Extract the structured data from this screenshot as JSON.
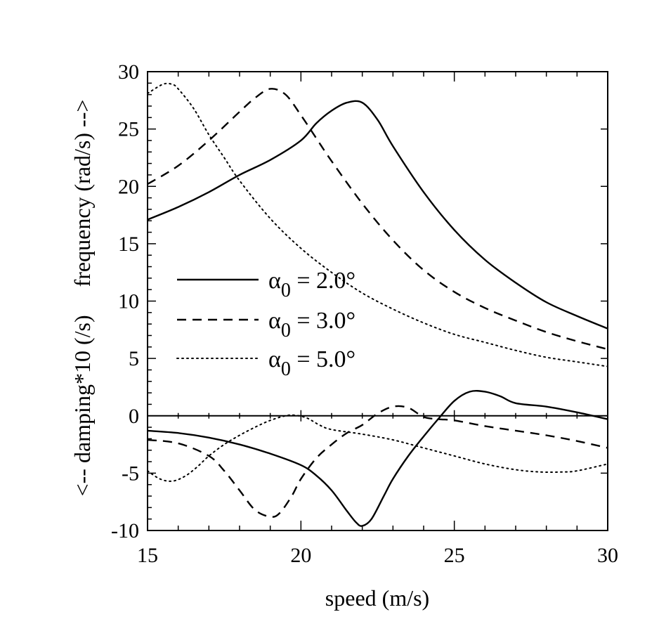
{
  "chart_data": {
    "type": "line",
    "xlabel": "speed (m/s)",
    "ylabel": "<-- damping*10 (/s)     frequency (rad/s) -->",
    "xlim": [
      15,
      30
    ],
    "ylim": [
      -10,
      30
    ],
    "xticks": [
      15,
      20,
      25,
      30
    ],
    "yticks": [
      -10,
      -5,
      0,
      5,
      10,
      15,
      20,
      25,
      30
    ],
    "grid": false,
    "legend_position": "center-left",
    "series": [
      {
        "name": "α0 = 2.0°",
        "legend": {
          "alpha": "α",
          "sub": "0",
          "rest": " = 2.0°"
        },
        "style": "solid",
        "frequency": {
          "x": [
            15,
            16,
            17,
            18,
            19,
            20,
            20.5,
            21,
            21.5,
            22,
            22.5,
            23,
            24,
            25,
            26,
            27,
            28,
            29,
            30
          ],
          "y": [
            17.1,
            18.2,
            19.5,
            21.0,
            22.3,
            24.0,
            25.5,
            26.6,
            27.3,
            27.3,
            25.8,
            23.5,
            19.5,
            16.2,
            13.6,
            11.6,
            9.9,
            8.7,
            7.6
          ]
        },
        "damping": {
          "x": [
            15,
            16,
            17,
            18,
            19,
            20,
            20.5,
            21,
            21.5,
            21.8,
            22,
            22.3,
            22.7,
            23,
            23.5,
            24,
            24.5,
            25,
            25.5,
            26,
            26.5,
            27,
            28,
            29,
            30
          ],
          "y": [
            -1.3,
            -1.5,
            -1.9,
            -2.5,
            -3.3,
            -4.3,
            -5.2,
            -6.5,
            -8.3,
            -9.3,
            -9.6,
            -9.0,
            -7.0,
            -5.5,
            -3.5,
            -1.8,
            -0.2,
            1.3,
            2.1,
            2.1,
            1.7,
            1.1,
            0.8,
            0.3,
            -0.3
          ]
        }
      },
      {
        "name": "α0 = 3.0°",
        "legend": {
          "alpha": "α",
          "sub": "0",
          "rest": " = 3.0°"
        },
        "style": "dashed",
        "frequency": {
          "x": [
            15,
            16,
            17,
            18,
            18.5,
            19,
            19.5,
            20,
            20.5,
            21,
            22,
            23,
            24,
            25,
            26,
            27,
            28,
            29,
            30
          ],
          "y": [
            20.2,
            21.8,
            24.0,
            26.5,
            27.7,
            28.5,
            28.0,
            26.2,
            24.2,
            22.2,
            18.5,
            15.3,
            12.7,
            10.8,
            9.4,
            8.3,
            7.3,
            6.5,
            5.8
          ]
        },
        "damping": {
          "x": [
            15,
            16,
            17,
            17.5,
            18,
            18.5,
            19,
            19.3,
            19.7,
            20,
            20.5,
            21,
            21.5,
            22,
            22.5,
            23,
            23.5,
            24,
            24.5,
            25,
            26,
            27,
            28,
            29,
            30
          ],
          "y": [
            -2.1,
            -2.4,
            -3.5,
            -4.8,
            -6.5,
            -8.2,
            -8.8,
            -8.5,
            -7.0,
            -5.5,
            -3.7,
            -2.5,
            -1.5,
            -0.8,
            0.2,
            0.8,
            0.7,
            -0.1,
            -0.3,
            -0.4,
            -0.9,
            -1.3,
            -1.7,
            -2.2,
            -2.8
          ]
        }
      },
      {
        "name": "α0 = 5.0°",
        "legend": {
          "alpha": "α",
          "sub": "0",
          "rest": " = 5.0°"
        },
        "style": "dotted",
        "frequency": {
          "x": [
            15,
            15.5,
            15.8,
            16,
            16.5,
            17,
            17.5,
            18,
            19,
            20,
            21,
            22,
            23,
            24,
            25,
            26,
            27,
            28,
            29,
            30
          ],
          "y": [
            28.1,
            28.9,
            28.9,
            28.5,
            26.8,
            24.5,
            22.5,
            20.5,
            17.2,
            14.6,
            12.5,
            10.7,
            9.3,
            8.1,
            7.1,
            6.4,
            5.7,
            5.1,
            4.7,
            4.3
          ]
        },
        "damping": {
          "x": [
            15,
            15.4,
            15.8,
            16.2,
            16.6,
            17,
            17.5,
            18,
            18.5,
            19,
            19.5,
            19.8,
            20.2,
            20.6,
            21,
            22,
            23,
            24,
            25,
            26,
            27,
            27.8,
            28.5,
            29,
            30
          ],
          "y": [
            -4.8,
            -5.5,
            -5.7,
            -5.3,
            -4.5,
            -3.5,
            -2.5,
            -1.7,
            -1.0,
            -0.4,
            0.0,
            0.05,
            -0.2,
            -0.8,
            -1.2,
            -1.6,
            -2.1,
            -2.8,
            -3.5,
            -4.2,
            -4.7,
            -4.9,
            -4.9,
            -4.8,
            -4.2
          ]
        }
      }
    ]
  }
}
